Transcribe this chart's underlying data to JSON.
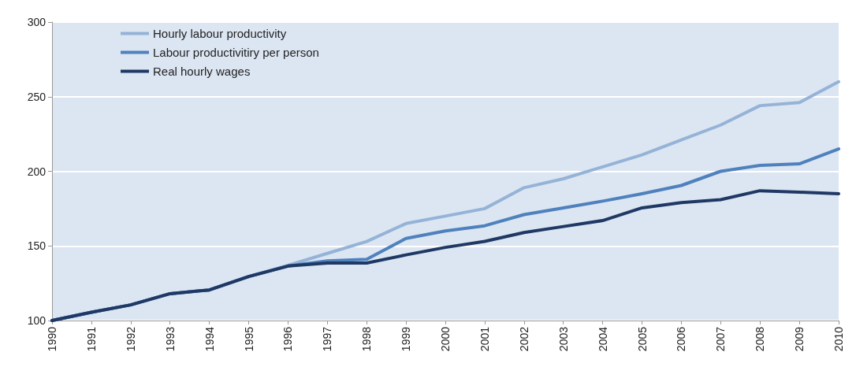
{
  "chart_data": {
    "type": "line",
    "categories": [
      "1990",
      "1991",
      "1992",
      "1993",
      "1994",
      "1995",
      "1996",
      "1997",
      "1998",
      "1999",
      "2000",
      "2001",
      "2002",
      "2003",
      "2004",
      "2005",
      "2006",
      "2007",
      "2008",
      "2009",
      "2010"
    ],
    "series": [
      {
        "name": "Hourly labour productivity",
        "color": "#95b3d7",
        "values": [
          100,
          105.5,
          110.5,
          118,
          120.5,
          129.5,
          137,
          145,
          153,
          165,
          170,
          175,
          189,
          195,
          203,
          211,
          221,
          231,
          244,
          246,
          260
        ]
      },
      {
        "name": "Labour productivitiry per person",
        "color": "#4f81bd",
        "values": [
          100,
          105.5,
          110.5,
          118,
          120.5,
          129.5,
          136.5,
          140,
          141,
          155,
          160,
          163.5,
          171,
          175.5,
          180,
          185,
          190.5,
          200,
          204,
          205,
          215
        ]
      },
      {
        "name": "Real hourly wages",
        "color": "#1f3864",
        "values": [
          100,
          105.5,
          110.5,
          118,
          120.5,
          129.5,
          136.5,
          138.5,
          138.5,
          144,
          149,
          153,
          159,
          163,
          167,
          175.5,
          179,
          181,
          187,
          186,
          185
        ]
      }
    ],
    "ylim": [
      100,
      300
    ],
    "yticks": [
      100,
      150,
      200,
      250,
      300
    ],
    "grid": "y",
    "legend": "top left",
    "marker": "none",
    "line_style": "solid"
  }
}
